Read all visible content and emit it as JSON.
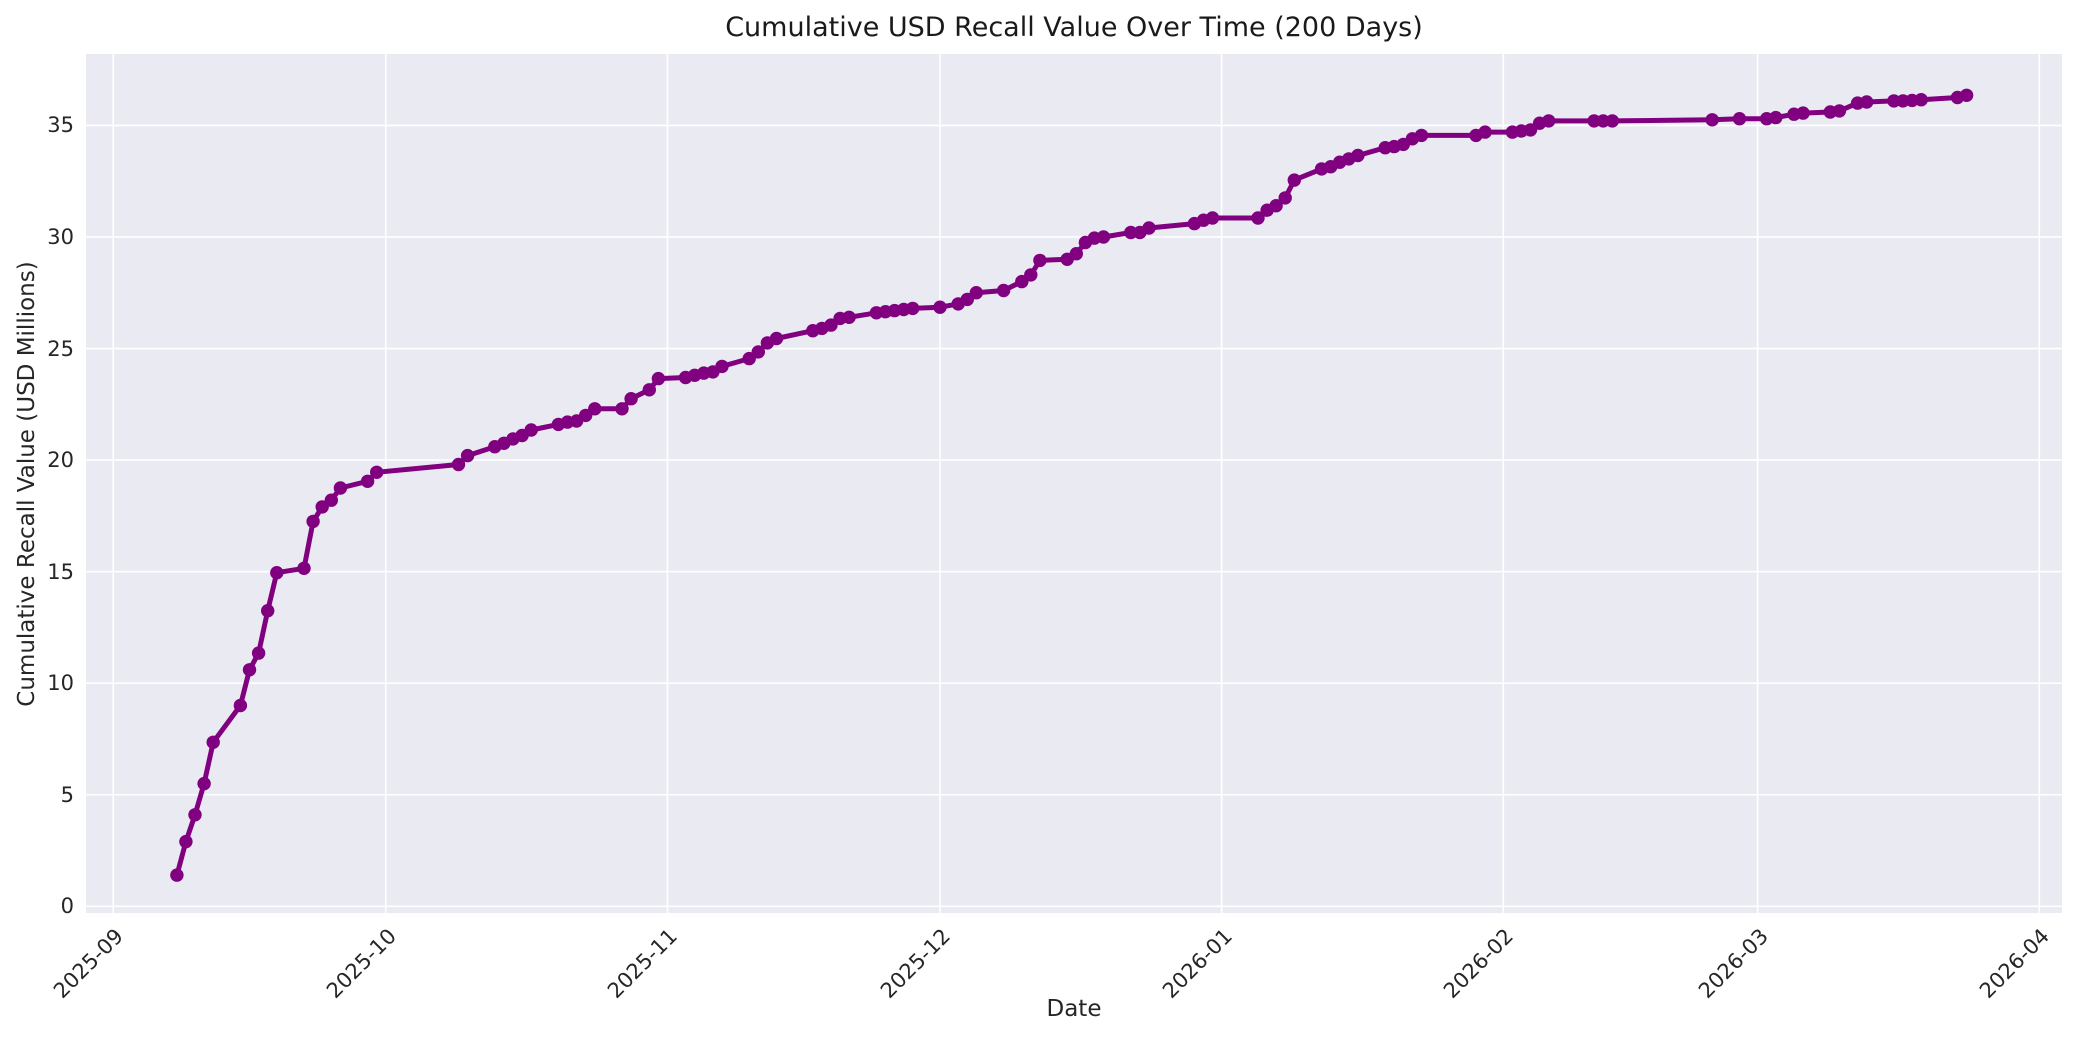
{
  "chart_data": {
    "type": "line",
    "title": "Cumulative USD Recall Value Over Time (200 Days)",
    "xlabel": "Date",
    "ylabel": "Cumulative Recall Value (USD Millions)",
    "legend": "none",
    "grid": "on",
    "line_color": "#800080",
    "marker_style": "circle",
    "plot_background": "#eaeaf2",
    "grid_color": "#ffffff",
    "text_color": "#262626",
    "x_epoch": "2025-09-01",
    "xlim_days": [
      -3,
      214.5
    ],
    "ylim": [
      -0.3,
      38.2
    ],
    "y_ticks": [
      0,
      5,
      10,
      15,
      20,
      25,
      30,
      35
    ],
    "x_ticks": [
      {
        "label": "2025-09",
        "date": "2025-09-01"
      },
      {
        "label": "2025-10",
        "date": "2025-10-01"
      },
      {
        "label": "2025-11",
        "date": "2025-11-01"
      },
      {
        "label": "2025-12",
        "date": "2025-12-01"
      },
      {
        "label": "2026-01",
        "date": "2026-01-01"
      },
      {
        "label": "2026-02",
        "date": "2026-02-01"
      },
      {
        "label": "2026-03",
        "date": "2026-03-01"
      },
      {
        "label": "2026-04",
        "date": "2026-04-01"
      }
    ],
    "points": [
      [
        "2025-09-08",
        1.4
      ],
      [
        "2025-09-09",
        2.9
      ],
      [
        "2025-09-10",
        4.1
      ],
      [
        "2025-09-11",
        5.5
      ],
      [
        "2025-09-12",
        7.35
      ],
      [
        "2025-09-15",
        9.0
      ],
      [
        "2025-09-16",
        10.6
      ],
      [
        "2025-09-17",
        11.35
      ],
      [
        "2025-09-18",
        13.25
      ],
      [
        "2025-09-19",
        14.95
      ],
      [
        "2025-09-22",
        15.15
      ],
      [
        "2025-09-23",
        17.25
      ],
      [
        "2025-09-24",
        17.9
      ],
      [
        "2025-09-25",
        18.2
      ],
      [
        "2025-09-26",
        18.75
      ],
      [
        "2025-09-29",
        19.05
      ],
      [
        "2025-09-30",
        19.45
      ],
      [
        "2025-10-09",
        19.8
      ],
      [
        "2025-10-10",
        20.2
      ],
      [
        "2025-10-13",
        20.6
      ],
      [
        "2025-10-14",
        20.75
      ],
      [
        "2025-10-15",
        20.95
      ],
      [
        "2025-10-16",
        21.1
      ],
      [
        "2025-10-17",
        21.35
      ],
      [
        "2025-10-20",
        21.6
      ],
      [
        "2025-10-21",
        21.7
      ],
      [
        "2025-10-22",
        21.75
      ],
      [
        "2025-10-23",
        22.0
      ],
      [
        "2025-10-24",
        22.3
      ],
      [
        "2025-10-27",
        22.3
      ],
      [
        "2025-10-28",
        22.75
      ],
      [
        "2025-10-30",
        23.15
      ],
      [
        "2025-10-31",
        23.65
      ],
      [
        "2025-11-03",
        23.7
      ],
      [
        "2025-11-04",
        23.8
      ],
      [
        "2025-11-05",
        23.9
      ],
      [
        "2025-11-06",
        23.95
      ],
      [
        "2025-11-07",
        24.2
      ],
      [
        "2025-11-10",
        24.55
      ],
      [
        "2025-11-11",
        24.85
      ],
      [
        "2025-11-12",
        25.25
      ],
      [
        "2025-11-13",
        25.45
      ],
      [
        "2025-11-17",
        25.8
      ],
      [
        "2025-11-18",
        25.9
      ],
      [
        "2025-11-19",
        26.05
      ],
      [
        "2025-11-20",
        26.35
      ],
      [
        "2025-11-21",
        26.4
      ],
      [
        "2025-11-24",
        26.6
      ],
      [
        "2025-11-25",
        26.65
      ],
      [
        "2025-11-26",
        26.7
      ],
      [
        "2025-11-27",
        26.75
      ],
      [
        "2025-11-28",
        26.8
      ],
      [
        "2025-12-01",
        26.85
      ],
      [
        "2025-12-03",
        27.0
      ],
      [
        "2025-12-04",
        27.2
      ],
      [
        "2025-12-05",
        27.5
      ],
      [
        "2025-12-08",
        27.6
      ],
      [
        "2025-12-10",
        28.0
      ],
      [
        "2025-12-11",
        28.3
      ],
      [
        "2025-12-12",
        28.95
      ],
      [
        "2025-12-15",
        29.0
      ],
      [
        "2025-12-16",
        29.25
      ],
      [
        "2025-12-17",
        29.75
      ],
      [
        "2025-12-18",
        29.95
      ],
      [
        "2025-12-19",
        30.0
      ],
      [
        "2025-12-22",
        30.2
      ],
      [
        "2025-12-23",
        30.2
      ],
      [
        "2025-12-24",
        30.4
      ],
      [
        "2025-12-29",
        30.6
      ],
      [
        "2025-12-30",
        30.75
      ],
      [
        "2025-12-31",
        30.85
      ],
      [
        "2026-01-05",
        30.85
      ],
      [
        "2026-01-06",
        31.2
      ],
      [
        "2026-01-07",
        31.4
      ],
      [
        "2026-01-08",
        31.75
      ],
      [
        "2026-01-09",
        32.55
      ],
      [
        "2026-01-12",
        33.05
      ],
      [
        "2026-01-13",
        33.15
      ],
      [
        "2026-01-14",
        33.35
      ],
      [
        "2026-01-15",
        33.5
      ],
      [
        "2026-01-16",
        33.65
      ],
      [
        "2026-01-19",
        34.0
      ],
      [
        "2026-01-20",
        34.05
      ],
      [
        "2026-01-21",
        34.15
      ],
      [
        "2026-01-22",
        34.4
      ],
      [
        "2026-01-23",
        34.55
      ],
      [
        "2026-01-29",
        34.55
      ],
      [
        "2026-01-30",
        34.7
      ],
      [
        "2026-02-02",
        34.7
      ],
      [
        "2026-02-03",
        34.75
      ],
      [
        "2026-02-04",
        34.8
      ],
      [
        "2026-02-05",
        35.1
      ],
      [
        "2026-02-06",
        35.2
      ],
      [
        "2026-02-11",
        35.2
      ],
      [
        "2026-02-12",
        35.2
      ],
      [
        "2026-02-13",
        35.2
      ],
      [
        "2026-02-24",
        35.25
      ],
      [
        "2026-02-27",
        35.3
      ],
      [
        "2026-03-02",
        35.3
      ],
      [
        "2026-03-03",
        35.35
      ],
      [
        "2026-03-05",
        35.5
      ],
      [
        "2026-03-06",
        35.55
      ],
      [
        "2026-03-09",
        35.6
      ],
      [
        "2026-03-10",
        35.65
      ],
      [
        "2026-03-12",
        36.0
      ],
      [
        "2026-03-13",
        36.05
      ],
      [
        "2026-03-16",
        36.1
      ],
      [
        "2026-03-17",
        36.1
      ],
      [
        "2026-03-18",
        36.12
      ],
      [
        "2026-03-19",
        36.15
      ],
      [
        "2026-03-23",
        36.25
      ],
      [
        "2026-03-24",
        36.35
      ]
    ]
  }
}
